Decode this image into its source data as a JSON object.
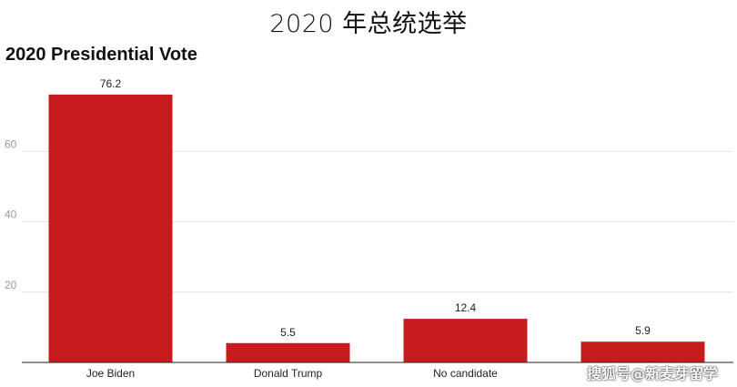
{
  "heading": "2020 年总统选举",
  "watermark": "搜狐号@新麦芽留学",
  "colors": {
    "bar": "#c61c1d",
    "grid": "#e4e4e4",
    "axis": "#222222",
    "tick_label": "#9a9a9a",
    "category_label": "#222222",
    "value_label": "#222222"
  },
  "chart_data": {
    "type": "bar",
    "title": "2020 Presidential Vote",
    "categories": [
      "Joe Biden",
      "Donald Trump",
      "No candidate",
      ""
    ],
    "values": [
      76.2,
      5.5,
      12.4,
      5.9
    ],
    "value_labels": [
      "76.2",
      "5.5",
      "12.4",
      "5.9"
    ],
    "xlabel": "",
    "ylabel": "",
    "ylim": [
      0,
      80
    ],
    "yticks": [
      20,
      40,
      60
    ],
    "grid": true,
    "legend": "none"
  }
}
